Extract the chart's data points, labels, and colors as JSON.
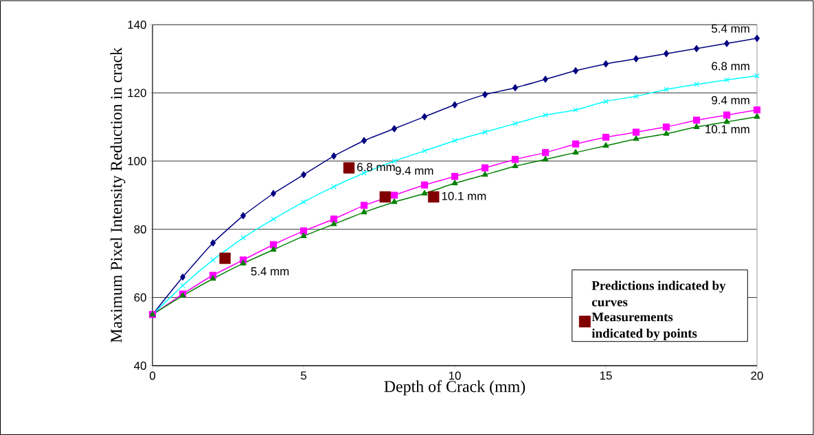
{
  "chart_data": {
    "type": "line",
    "xlabel": "Depth of Crack (mm)",
    "ylabel": "Maximum Pixel Intensity Reduction in crack",
    "legend_title": "Predictions indicated by curves",
    "x": [
      0,
      1,
      2,
      3,
      4,
      5,
      6,
      7,
      8,
      9,
      10,
      11,
      12,
      13,
      14,
      15,
      16,
      17,
      18,
      19,
      20
    ],
    "series": [
      {
        "name": "5.4 mm",
        "color": "#000080",
        "marker": "diamond",
        "values": [
          55,
          66,
          76,
          84,
          90.5,
          96,
          101.5,
          106,
          109.5,
          113,
          116.5,
          119.5,
          121.5,
          124,
          126.5,
          128.5,
          130,
          131.5,
          133,
          134.5,
          136
        ]
      },
      {
        "name": "6.8 mm",
        "color": "#00ffff",
        "marker": "cross",
        "values": [
          55,
          63.5,
          71,
          77.5,
          83,
          88,
          92.5,
          96.5,
          100,
          103,
          106,
          108.5,
          111,
          113.5,
          115,
          117.5,
          119,
          121,
          122.5,
          123.8,
          125
        ]
      },
      {
        "name": "9.4 mm",
        "color": "#ff00ff",
        "marker": "square",
        "values": [
          55,
          61,
          66.5,
          71,
          75.5,
          79.5,
          83,
          87,
          90,
          93,
          95.5,
          98,
          100.5,
          102.5,
          105,
          107,
          108.5,
          110,
          112,
          113.5,
          115
        ]
      },
      {
        "name": "10.1 mm",
        "color": "#008000",
        "marker": "triangle",
        "values": [
          55,
          60.5,
          65.5,
          70,
          74,
          78,
          81.5,
          85,
          88,
          90.5,
          93.5,
          96,
          98.5,
          100.5,
          102.5,
          104.5,
          106.5,
          108,
          110,
          111.5,
          113
        ]
      },
      {
        "type": "scatter",
        "name": "Measurements indicated by points",
        "color": "#800000",
        "marker": "square",
        "x": [
          2.4,
          6.5,
          7.7,
          9.3
        ],
        "values": [
          71.5,
          98,
          89.5,
          89.5
        ]
      }
    ],
    "annotations": [
      {
        "text": "5.4 mm",
        "x": 2.4,
        "y": 71.5
      },
      {
        "text": "6.8 mm",
        "x": 6.5,
        "y": 98
      },
      {
        "text": "9.4 mm",
        "x": 7.7,
        "y": 89.5
      },
      {
        "text": "10.1 mm",
        "x": 9.3,
        "y": 89.5
      }
    ],
    "xlim": [
      0,
      20
    ],
    "xticks": [
      0,
      5,
      10,
      15,
      20
    ],
    "ylim": [
      40,
      140
    ],
    "yticks": [
      40,
      60,
      80,
      100,
      120,
      140
    ],
    "grid": "y",
    "legend": "bottom right"
  }
}
